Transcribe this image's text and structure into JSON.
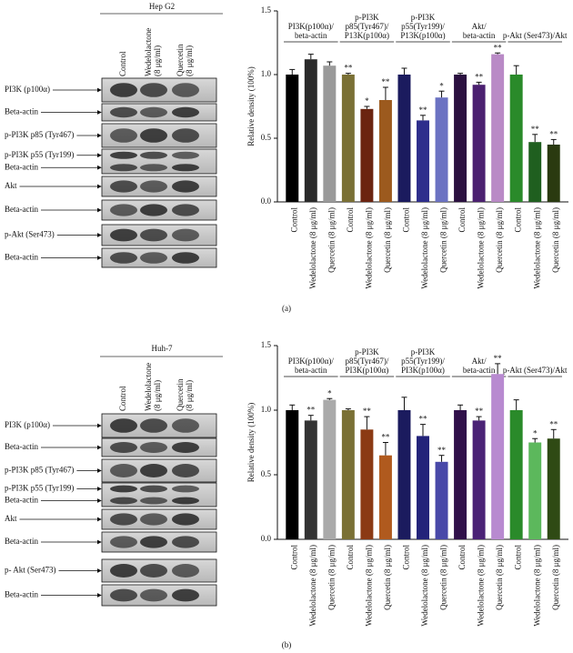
{
  "panel_labels": [
    "(a)",
    "(b)"
  ],
  "blots": [
    {
      "title": "Hep G2",
      "lanes": [
        [
          "Control"
        ],
        [
          "Wedelolactone",
          "(8 μg/ml)"
        ],
        [
          "Quercetin",
          "(8 μg/ml)"
        ]
      ],
      "rows": [
        {
          "labels": [
            "PI3K (p100α)"
          ]
        },
        {
          "labels": [
            "Beta-actin"
          ]
        },
        {
          "labels": [
            "p-PI3K p85 (Tyr467)"
          ]
        },
        {
          "labels": [
            "p-PI3K p55 (Tyr199)",
            "Beta-actin"
          ]
        },
        {
          "labels": [
            "Akt"
          ]
        },
        {
          "labels": [
            "Beta-actin"
          ]
        },
        {
          "labels": [
            "p-Akt (Ser473)"
          ]
        },
        {
          "labels": [
            "Beta-actin"
          ]
        }
      ]
    },
    {
      "title": "Huh-7",
      "lanes": [
        [
          "Control"
        ],
        [
          "Wedelolactone",
          "(8 μg/ml)"
        ],
        [
          "Quercetin",
          "(8 μg/ml)"
        ]
      ],
      "rows": [
        {
          "labels": [
            "PI3K (p100α)"
          ]
        },
        {
          "labels": [
            "Beta-actin"
          ]
        },
        {
          "labels": [
            "p-PI3K p85 (Tyr467)"
          ]
        },
        {
          "labels": [
            "p-PI3K p55 (Tyr199)",
            "Beta-actin"
          ]
        },
        {
          "labels": [
            "Akt"
          ]
        },
        {
          "labels": [
            "Beta-actin"
          ]
        },
        {
          "labels": [
            "p- Akt (Ser473)"
          ]
        },
        {
          "labels": [
            "Beta-actin"
          ]
        }
      ]
    }
  ],
  "chart_data": [
    {
      "type": "bar",
      "ylabel": "Relative density (100%)",
      "ylim": [
        0,
        1.5
      ],
      "yticks": [
        {
          "value": 0,
          "label": "0.0"
        },
        0.5,
        {
          "value": 1,
          "label": "1.0"
        },
        1.5
      ],
      "groups": [
        {
          "label": [
            "PI3K(p100α)/",
            "beta-actin"
          ]
        },
        {
          "label": [
            "p-PI3K",
            "p85(Tyr467)/",
            "P13K(p100α)"
          ]
        },
        {
          "label": [
            "p-PI3K",
            "p55(Tyr199)/",
            "P13K(p100α)"
          ]
        },
        {
          "label": [
            "Akt/",
            "beta-actin"
          ]
        },
        {
          "label": [
            "p-Akt (Ser473)/Akt"
          ]
        }
      ],
      "categories": [
        "Control",
        "Wedelolactone (8 μg/ml)",
        "Quercetin (8 μg/ml)",
        "Control",
        "Wedelolactone (8 μg/ml)",
        "Quercetin (8 μg/ml)",
        "Control",
        "Wedelolactone (8 μg/ml)",
        "Quercetin (8 μg/ml)",
        "Control",
        "Wedelolactone (8 μg/ml)",
        "Quercetin (8 μg/ml)",
        "Control",
        "Wedelolactone (8 μg/ml)",
        "Quercetin (8 μg/ml)"
      ],
      "values": [
        1.0,
        1.12,
        1.07,
        1.0,
        0.73,
        0.8,
        1.0,
        0.64,
        0.82,
        1.0,
        0.92,
        1.16,
        1.0,
        0.47,
        0.45
      ],
      "errors": [
        0.04,
        0.04,
        0.03,
        0.01,
        0.02,
        0.1,
        0.05,
        0.04,
        0.05,
        0.01,
        0.02,
        0.01,
        0.07,
        0.06,
        0.04
      ],
      "annotations": [
        null,
        null,
        null,
        "**",
        "*",
        "**",
        null,
        "**",
        "*",
        null,
        "**",
        "**",
        null,
        "**",
        "**"
      ],
      "colors": [
        "#000000",
        "#2a2a2a",
        "#9a9a9a",
        "#7a7035",
        "#6b2410",
        "#9c5a1e",
        "#1b1b5e",
        "#2e2e8c",
        "#6b72c2",
        "#2b1040",
        "#4b2070",
        "#b98ac6",
        "#2a8a2a",
        "#1f5f1f",
        "#2a3a10"
      ]
    },
    {
      "type": "bar",
      "ylabel": "Relative density (100%)",
      "ylim": [
        0,
        1.5
      ],
      "yticks": [
        {
          "value": 0,
          "label": "0.0"
        },
        0.5,
        {
          "value": 1,
          "label": "1.0"
        },
        1.5
      ],
      "groups": [
        {
          "label": [
            "PI3K(p100α)/",
            "beta-actin"
          ]
        },
        {
          "label": [
            "p-PI3K",
            "p85(Tyr467)/",
            "PI3K(p100α)"
          ]
        },
        {
          "label": [
            "p-PI3K",
            "p55(Tyr199)/",
            "PI3K(p100α)"
          ]
        },
        {
          "label": [
            "Akt/",
            "beta-actin"
          ]
        },
        {
          "label": [
            "p-Akt (Ser473)/Akt"
          ]
        }
      ],
      "categories": [
        "Control",
        "Wedelolactone (8 μg/ml)",
        "Quercetin (8 μg/ml)",
        "Control",
        "Wedelolactone (8 μg/ml)",
        "Quercetin (8 μg/ml)",
        "Control",
        "Wedelolactone (8 μg/ml)",
        "Quercetin (8 μg/ml)",
        "Control",
        "Wedelolactone (8 μg/ml)",
        "Quercetin (8 μg/ml)",
        "Control",
        "Wedelolactone (8 μg/ml)",
        "Quercetin (8 μg/ml)"
      ],
      "values": [
        1.0,
        0.92,
        1.08,
        1.0,
        0.85,
        0.65,
        1.0,
        0.8,
        0.6,
        1.0,
        0.92,
        1.28,
        1.0,
        0.75,
        0.78
      ],
      "errors": [
        0.04,
        0.04,
        0.01,
        0.01,
        0.1,
        0.1,
        0.1,
        0.09,
        0.05,
        0.04,
        0.03,
        0.08,
        0.08,
        0.03,
        0.07
      ],
      "annotations": [
        null,
        "**",
        "*",
        null,
        "**",
        "**",
        null,
        "**",
        "**",
        null,
        "**",
        "**",
        null,
        "*",
        "**"
      ],
      "colors": [
        "#000000",
        "#333333",
        "#aaaaaa",
        "#7a7035",
        "#8b3a14",
        "#b05a1e",
        "#1b1b5e",
        "#23237a",
        "#4848a8",
        "#30104a",
        "#4a2276",
        "#b88ad0",
        "#2a8a2a",
        "#5cb85c",
        "#2f4a14"
      ]
    }
  ]
}
